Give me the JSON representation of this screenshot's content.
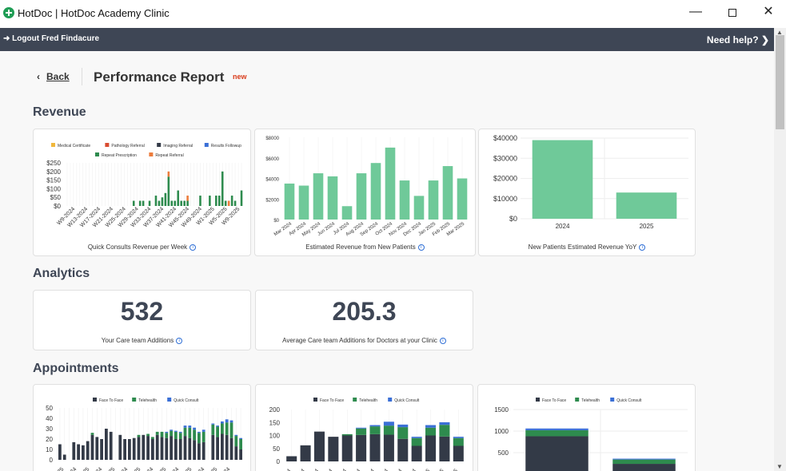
{
  "window": {
    "title": "HotDoc | HotDoc Academy Clinic"
  },
  "nav": {
    "logout": "Logout Fred Findacure",
    "help": "Need help?"
  },
  "page": {
    "back": "Back",
    "title": "Performance Report",
    "badge": "new"
  },
  "sections": {
    "revenue": "Revenue",
    "analytics": "Analytics",
    "appointments": "Appointments"
  },
  "colors": {
    "green": "#2e8b4e",
    "lightgreen": "#6fc999",
    "navy": "#333a47",
    "blue": "#3a6fd6",
    "orange": "#ec7c3c",
    "red": "#d94b30",
    "yellow": "#f0b73c"
  },
  "analytics": {
    "care_team_additions": {
      "value": "532",
      "label": "Your Care team Additions"
    },
    "average_additions": {
      "value": "205.3",
      "label": "Average Care team Additions for Doctors at your Clinic"
    }
  },
  "chart_data": [
    {
      "type": "bar",
      "title": "Quick Consults Revenue per Week",
      "legend": [
        "Medical Certificate",
        "Pathology Referral",
        "Imaging Referral",
        "Results Followup",
        "Repeat Prescription",
        "Repeat Referral"
      ],
      "legend_colors": [
        "#f0b73c",
        "#d94b30",
        "#333a47",
        "#3a6fd6",
        "#2e8b4e",
        "#ec7c3c"
      ],
      "yticks": [
        "$250",
        "$200",
        "$150",
        "$100",
        "$50",
        "$0"
      ],
      "ylim": [
        0,
        250
      ],
      "xticks": [
        "W9-2024",
        "W13-2024",
        "W17-2024",
        "W21-2024",
        "W25-2024",
        "W29-2024",
        "W33-2024",
        "W37-2024",
        "W41-2024",
        "W45-2024",
        "W49-2024",
        "W1-2025",
        "W5-2025",
        "W9-2025"
      ],
      "series": [
        {
          "name": "Repeat Prescription",
          "values": [
            0,
            0,
            0,
            0,
            0,
            0,
            0,
            0,
            0,
            0,
            0,
            0,
            0,
            0,
            0,
            0,
            0,
            0,
            0,
            0,
            0,
            30,
            0,
            30,
            30,
            0,
            30,
            0,
            60,
            30,
            50,
            75,
            170,
            30,
            30,
            90,
            30,
            30,
            30,
            0,
            0,
            0,
            60,
            0,
            0,
            60,
            0,
            60,
            60,
            200,
            30,
            0,
            60,
            30,
            0,
            90
          ]
        },
        {
          "name": "Repeat Referral",
          "values": [
            0,
            0,
            0,
            0,
            0,
            0,
            0,
            0,
            0,
            0,
            0,
            0,
            0,
            0,
            0,
            0,
            0,
            0,
            0,
            0,
            0,
            0,
            0,
            0,
            0,
            0,
            0,
            0,
            0,
            0,
            0,
            0,
            30,
            0,
            0,
            0,
            0,
            0,
            30,
            0,
            0,
            0,
            0,
            0,
            0,
            0,
            0,
            0,
            0,
            0,
            0,
            30,
            0,
            0,
            0,
            0
          ]
        }
      ]
    },
    {
      "type": "bar",
      "title": "Estimated Revenue from New Patients",
      "categories": [
        "Mar 2024",
        "Apr 2024",
        "May 2024",
        "Jun 2024",
        "Jul 2024",
        "Aug 2024",
        "Sep 2024",
        "Oct 2024",
        "Nov 2024",
        "Dec 2024",
        "Jan 2025",
        "Feb 2025",
        "Mar 2025"
      ],
      "values": [
        3500,
        3300,
        4500,
        4200,
        1300,
        4500,
        5500,
        7000,
        3800,
        2300,
        3800,
        5200,
        4000
      ],
      "yticks": [
        "$8000",
        "$6000",
        "$4000",
        "$2000",
        "$0"
      ],
      "ylim": [
        0,
        8000
      ]
    },
    {
      "type": "bar",
      "title": "New Patients Estimated Revenue YoY",
      "categories": [
        "2024",
        "2025"
      ],
      "values": [
        39000,
        13000
      ],
      "yticks": [
        "$40000",
        "$30000",
        "$20000",
        "$10000",
        "$0"
      ],
      "ylim": [
        0,
        40000
      ]
    },
    {
      "type": "bar",
      "legend": [
        "Face To Face",
        "Telehealth",
        "Quick Consult"
      ],
      "legend_colors": [
        "#333a47",
        "#2e8b4e",
        "#3a6fd6"
      ],
      "yticks": [
        "50",
        "40",
        "30",
        "20",
        "10",
        "0"
      ],
      "ylim": [
        0,
        50
      ],
      "series": [
        {
          "name": "Face To Face",
          "values": [
            15,
            5,
            0,
            17,
            15,
            14,
            18,
            24,
            22,
            20,
            30,
            27,
            0,
            24,
            20,
            20,
            21,
            22,
            24,
            23,
            20,
            24,
            22,
            21,
            23,
            20,
            20,
            23,
            21,
            19,
            16,
            17,
            0,
            24,
            22,
            25,
            24,
            21,
            13,
            10
          ]
        },
        {
          "name": "Telehealth",
          "values": [
            0,
            0,
            0,
            0,
            0,
            0,
            0,
            2,
            0,
            0,
            0,
            0,
            0,
            0,
            0,
            0,
            0,
            2,
            0,
            2,
            2,
            3,
            5,
            5,
            5,
            7,
            6,
            8,
            10,
            10,
            10,
            10,
            0,
            10,
            10,
            10,
            12,
            15,
            10,
            10
          ]
        },
        {
          "name": "Quick Consult",
          "values": [
            0,
            0,
            0,
            0,
            0,
            0,
            0,
            0,
            0,
            0,
            0,
            0,
            0,
            0,
            0,
            0,
            0,
            0,
            0,
            0,
            0,
            0,
            0,
            1,
            1,
            1,
            1,
            2,
            2,
            2,
            1,
            2,
            0,
            1,
            1,
            2,
            3,
            2,
            1,
            1
          ]
        }
      ]
    },
    {
      "type": "bar",
      "legend": [
        "Face To Face",
        "Telehealth",
        "Quick Consult"
      ],
      "legend_colors": [
        "#333a47",
        "#2e8b4e",
        "#3a6fd6"
      ],
      "yticks": [
        "200",
        "150",
        "100",
        "50",
        "0"
      ],
      "ylim": [
        0,
        200
      ],
      "series": [
        {
          "name": "Face To Face",
          "values": [
            20,
            62,
            115,
            95,
            100,
            102,
            105,
            103,
            87,
            60,
            100,
            96,
            60
          ]
        },
        {
          "name": "Telehealth",
          "values": [
            0,
            0,
            0,
            0,
            5,
            25,
            30,
            35,
            45,
            30,
            30,
            45,
            30
          ]
        },
        {
          "name": "Quick Consult",
          "values": [
            0,
            0,
            0,
            0,
            0,
            3,
            5,
            15,
            10,
            5,
            10,
            10,
            5
          ]
        }
      ]
    },
    {
      "type": "bar",
      "legend": [
        "Face To Face",
        "Telehealth",
        "Quick Consult"
      ],
      "legend_colors": [
        "#333a47",
        "#2e8b4e",
        "#3a6fd6"
      ],
      "yticks": [
        "1500",
        "1000",
        "500"
      ],
      "ylim": [
        0,
        1500
      ],
      "series": [
        {
          "name": "Face To Face",
          "values": [
            880,
            240
          ]
        },
        {
          "name": "Telehealth",
          "values": [
            140,
            100
          ]
        },
        {
          "name": "Quick Consult",
          "values": [
            40,
            20
          ]
        }
      ]
    }
  ]
}
